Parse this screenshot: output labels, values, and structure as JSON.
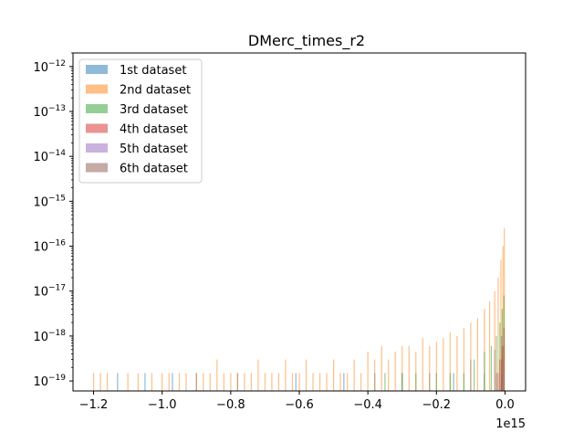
{
  "chart_data": {
    "type": "histogram",
    "title": "DMerc_times_r2",
    "xlabel": "",
    "ylabel": "",
    "x_offset_label": "1e15",
    "x_scale_multiplier": 1000000000000000.0,
    "xlim": [
      -1.26,
      0.06
    ],
    "ylim": [
      6e-20,
      2e-12
    ],
    "yscale": "log",
    "x_ticks": [
      {
        "value": -1.2,
        "label": "−1.2"
      },
      {
        "value": -1.0,
        "label": "−1.0"
      },
      {
        "value": -0.8,
        "label": "−0.8"
      },
      {
        "value": -0.6,
        "label": "−0.6"
      },
      {
        "value": -0.4,
        "label": "−0.4"
      },
      {
        "value": -0.2,
        "label": "−0.2"
      },
      {
        "value": 0.0,
        "label": "0.0"
      }
    ],
    "y_ticks": [
      {
        "exp": -19,
        "label_base": "10",
        "label_exp": "−19"
      },
      {
        "exp": -18,
        "label_base": "10",
        "label_exp": "−18"
      },
      {
        "exp": -17,
        "label_base": "10",
        "label_exp": "−17"
      },
      {
        "exp": -16,
        "label_base": "10",
        "label_exp": "−16"
      },
      {
        "exp": -15,
        "label_base": "10",
        "label_exp": "−15"
      },
      {
        "exp": -14,
        "label_base": "10",
        "label_exp": "−14"
      },
      {
        "exp": -13,
        "label_base": "10",
        "label_exp": "−13"
      },
      {
        "exp": -12,
        "label_base": "10",
        "label_exp": "−12"
      }
    ],
    "legend_position": "top-left",
    "grid": false,
    "series": [
      {
        "name": "1st dataset",
        "color": "#1f77b4",
        "opacity": 0.5,
        "bars": [
          [
            -1.13,
            1.5e-19
          ],
          [
            -1.05,
            1.5e-19
          ],
          [
            -0.97,
            1.5e-19
          ],
          [
            -0.9,
            1.5e-19
          ],
          [
            -0.78,
            1.5e-19
          ],
          [
            -0.61,
            1.5e-19
          ],
          [
            -0.47,
            1.5e-19
          ],
          [
            -0.38,
            1.5e-19
          ],
          [
            -0.3,
            1.5e-19
          ],
          [
            -0.22,
            1.5e-19
          ],
          [
            -0.15,
            1.5e-19
          ],
          [
            -0.1,
            3e-19
          ],
          [
            -0.06,
            1.5e-19
          ],
          [
            -0.03,
            5e-19
          ],
          [
            -0.01,
            1e-18
          ]
        ]
      },
      {
        "name": "2nd dataset",
        "color": "#ff7f0e",
        "opacity": 0.5,
        "bars": [
          [
            -1.2,
            1.5e-19
          ],
          [
            -1.18,
            1.5e-19
          ],
          [
            -1.16,
            1.5e-19
          ],
          [
            -1.1,
            1.5e-19
          ],
          [
            -1.07,
            1.5e-19
          ],
          [
            -1.03,
            1.5e-19
          ],
          [
            -1.0,
            1.5e-19
          ],
          [
            -0.98,
            1.5e-19
          ],
          [
            -0.95,
            1.5e-19
          ],
          [
            -0.93,
            1.5e-19
          ],
          [
            -0.9,
            1.5e-19
          ],
          [
            -0.88,
            1.5e-19
          ],
          [
            -0.86,
            1.5e-19
          ],
          [
            -0.84,
            3e-19
          ],
          [
            -0.82,
            1.5e-19
          ],
          [
            -0.8,
            1.5e-19
          ],
          [
            -0.78,
            1.5e-19
          ],
          [
            -0.76,
            1.5e-19
          ],
          [
            -0.74,
            1.5e-19
          ],
          [
            -0.72,
            3e-19
          ],
          [
            -0.7,
            1.5e-19
          ],
          [
            -0.68,
            1.5e-19
          ],
          [
            -0.66,
            1.5e-19
          ],
          [
            -0.64,
            3e-19
          ],
          [
            -0.62,
            1.5e-19
          ],
          [
            -0.6,
            1.5e-19
          ],
          [
            -0.58,
            3e-19
          ],
          [
            -0.56,
            1.5e-19
          ],
          [
            -0.54,
            1.5e-19
          ],
          [
            -0.52,
            1.5e-19
          ],
          [
            -0.5,
            3e-19
          ],
          [
            -0.48,
            1.5e-19
          ],
          [
            -0.46,
            1.5e-19
          ],
          [
            -0.44,
            3e-19
          ],
          [
            -0.42,
            1.5e-19
          ],
          [
            -0.4,
            4.5e-19
          ],
          [
            -0.38,
            3e-19
          ],
          [
            -0.36,
            6e-19
          ],
          [
            -0.34,
            3e-19
          ],
          [
            -0.32,
            4.5e-19
          ],
          [
            -0.3,
            6e-19
          ],
          [
            -0.28,
            6e-19
          ],
          [
            -0.26,
            4.5e-19
          ],
          [
            -0.24,
            9e-19
          ],
          [
            -0.22,
            6e-19
          ],
          [
            -0.2,
            7.5e-19
          ],
          [
            -0.18,
            9e-19
          ],
          [
            -0.16,
            1.2e-18
          ],
          [
            -0.14,
            1e-18
          ],
          [
            -0.12,
            1.5e-18
          ],
          [
            -0.1,
            2e-18
          ],
          [
            -0.08,
            2.5e-18
          ],
          [
            -0.06,
            4e-18
          ],
          [
            -0.045,
            6e-18
          ],
          [
            -0.03,
            1e-17
          ],
          [
            -0.02,
            2e-17
          ],
          [
            -0.012,
            5e-17
          ],
          [
            -0.006,
            1e-16
          ],
          [
            -0.002,
            2.5e-16
          ]
        ]
      },
      {
        "name": "3rd dataset",
        "color": "#2ca02c",
        "opacity": 0.5,
        "bars": [
          [
            -0.35,
            1.5e-19
          ],
          [
            -0.3,
            1.5e-19
          ],
          [
            -0.26,
            1.5e-19
          ],
          [
            -0.2,
            1.5e-19
          ],
          [
            -0.16,
            1.5e-19
          ],
          [
            -0.12,
            1.5e-19
          ],
          [
            -0.09,
            3e-19
          ],
          [
            -0.06,
            4.5e-19
          ],
          [
            -0.04,
            6e-19
          ],
          [
            -0.025,
            1e-18
          ],
          [
            -0.015,
            2e-18
          ],
          [
            -0.008,
            4e-18
          ],
          [
            -0.003,
            8e-18
          ]
        ]
      },
      {
        "name": "4th dataset",
        "color": "#d62728",
        "opacity": 0.5,
        "bars": [
          [
            -0.025,
            1.5e-19
          ],
          [
            -0.015,
            3e-19
          ],
          [
            -0.008,
            6e-19
          ],
          [
            -0.003,
            1.5e-18
          ]
        ]
      },
      {
        "name": "5th dataset",
        "color": "#9467bd",
        "opacity": 0.5,
        "bars": [
          [
            -0.01,
            1.5e-19
          ],
          [
            -0.004,
            3e-19
          ]
        ]
      },
      {
        "name": "6th dataset",
        "color": "#8c564b",
        "opacity": 0.5,
        "bars": [
          [
            -0.02,
            1.5e-19
          ],
          [
            -0.01,
            3e-19
          ],
          [
            -0.004,
            6e-19
          ]
        ]
      }
    ]
  }
}
